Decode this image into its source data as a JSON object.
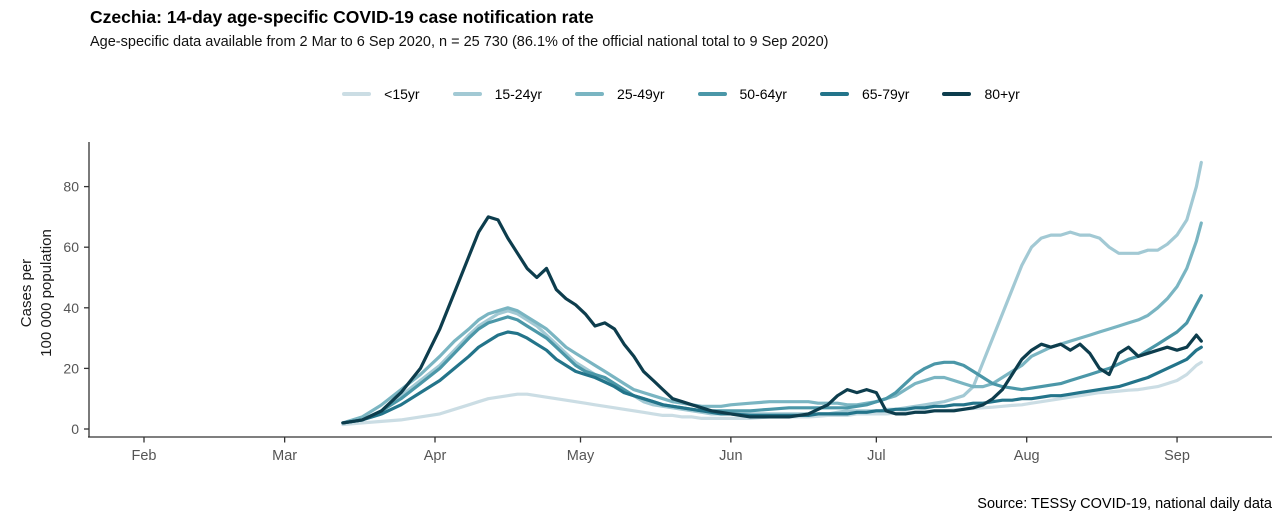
{
  "header": {
    "title": "Czechia: 14-day age-specific COVID-19 case notification rate",
    "subtitle": "Age-specific data available from 2 Mar to 6 Sep 2020, n = 25 730 (86.1% of the official national total to 9 Sep 2020)"
  },
  "footer": {
    "source": "Source: TESSy COVID-19, national daily data"
  },
  "colors": {
    "axis_line": "#333333",
    "tick_label": "#555555",
    "text": "#000000"
  },
  "chart_data": {
    "type": "line",
    "title": "Czechia: 14-day age-specific COVID-19 case notification rate",
    "subtitle": "Age-specific data available from 2 Mar to 6 Sep 2020, n = 25 730 (86.1% of the official national total to 9 Sep 2020)",
    "source": "Source: TESSy COVID-19, national daily data",
    "ylabel": "Cases per 100 000 population",
    "ylabel_lines": [
      "Cases per",
      "100 000 population"
    ],
    "xlabel": "",
    "grid": false,
    "legend_position": "top",
    "ylim": [
      0,
      95
    ],
    "yticks": [
      0,
      20,
      40,
      60,
      80
    ],
    "x_unit": "days since 1 Feb 2020 (data span 13 Mar – 6 Sep 2020)",
    "xticks": [
      {
        "label": "Feb",
        "day": 0
      },
      {
        "label": "Mar",
        "day": 29
      },
      {
        "label": "Apr",
        "day": 60
      },
      {
        "label": "May",
        "day": 90
      },
      {
        "label": "Jun",
        "day": 121
      },
      {
        "label": "Jul",
        "day": 151
      },
      {
        "label": "Aug",
        "day": 182
      },
      {
        "label": "Sep",
        "day": 213
      }
    ],
    "days": [
      41,
      45,
      49,
      53,
      57,
      61,
      64,
      67,
      69,
      71,
      73,
      75,
      77,
      79,
      81,
      83,
      85,
      87,
      89,
      91,
      93,
      95,
      97,
      99,
      101,
      103,
      105,
      107,
      109,
      111,
      113,
      115,
      117,
      119,
      121,
      125,
      129,
      133,
      135,
      137,
      139,
      141,
      143,
      145,
      147,
      149,
      151,
      152,
      153,
      155,
      157,
      159,
      161,
      163,
      165,
      167,
      169,
      171,
      173,
      175,
      177,
      179,
      181,
      183,
      185,
      187,
      189,
      191,
      193,
      195,
      197,
      199,
      201,
      203,
      205,
      207,
      209,
      211,
      213,
      215,
      217,
      218
    ],
    "series": [
      {
        "name": "<15yr",
        "color": "#cbdde4",
        "values": [
          1.5,
          2,
          2.5,
          3,
          4,
          5,
          6.5,
          8,
          9,
          10,
          10.5,
          11,
          11.5,
          11.5,
          11,
          10.5,
          10,
          9.5,
          9,
          8.5,
          8,
          7.5,
          7,
          6.5,
          6,
          5.5,
          5,
          4.5,
          4.5,
          4,
          4,
          3.5,
          3.5,
          3.5,
          3.5,
          3.5,
          4,
          4,
          4,
          4,
          4.2,
          4.5,
          4.5,
          4.5,
          5,
          5,
          5,
          5,
          5,
          5.2,
          5.5,
          5.7,
          6,
          6,
          6,
          6.3,
          6.5,
          6.8,
          7,
          7.2,
          7.5,
          7.8,
          8,
          8.5,
          9,
          9.5,
          10,
          10.5,
          11,
          11.5,
          12,
          12.2,
          12.5,
          12.8,
          13,
          13.5,
          14,
          15,
          16,
          18,
          21,
          22
        ]
      },
      {
        "name": "15-24yr",
        "color": "#a2c9d4",
        "values": [
          2,
          3,
          6,
          11,
          16,
          21,
          26,
          31,
          34,
          36,
          38,
          39,
          38,
          36,
          34,
          31,
          28,
          25,
          22,
          20,
          18,
          16,
          14,
          12,
          11,
          9,
          8,
          7.5,
          7,
          6.5,
          6,
          5.5,
          5,
          5,
          5,
          5,
          5,
          5,
          5,
          5,
          5,
          5,
          5.5,
          6,
          6,
          6,
          6,
          6,
          6.5,
          6.5,
          7,
          7.5,
          8,
          8.5,
          9,
          10,
          11,
          14,
          22,
          30,
          38,
          46,
          54,
          60,
          63,
          64,
          64,
          65,
          64,
          64,
          63,
          60,
          58,
          58,
          58,
          59,
          59,
          61,
          64,
          69,
          80,
          88
        ]
      },
      {
        "name": "25-49yr",
        "color": "#7ab5c2",
        "values": [
          2,
          4,
          8,
          13,
          18,
          24,
          29,
          33,
          36,
          38,
          39,
          40,
          39,
          37,
          35,
          33,
          30,
          27,
          25,
          23,
          21,
          19,
          17,
          15,
          13,
          12,
          11,
          10,
          9,
          8.5,
          8,
          7.5,
          7.5,
          7.5,
          8,
          8.5,
          9,
          9,
          9,
          9,
          8.5,
          8.5,
          8.5,
          8,
          8,
          8.5,
          9,
          9.5,
          10,
          11,
          13,
          15,
          16,
          17,
          17,
          16,
          15,
          14,
          14,
          15,
          17,
          19,
          21,
          24,
          25.5,
          27,
          28,
          29,
          30,
          31,
          32,
          33,
          34,
          35,
          36,
          37.5,
          40,
          43,
          47,
          53,
          62,
          68
        ]
      },
      {
        "name": "50-64yr",
        "color": "#4b97a8",
        "values": [
          2,
          3,
          6,
          10,
          15,
          20,
          25,
          30,
          33,
          35,
          36,
          37,
          36,
          34,
          32,
          30,
          27,
          24,
          21,
          19,
          18,
          17,
          15,
          13,
          11,
          10,
          9,
          8,
          7.5,
          7,
          6.5,
          6,
          6,
          6,
          6,
          6,
          6.5,
          7,
          7,
          7,
          7,
          7,
          7,
          7,
          7.5,
          8,
          9,
          9.5,
          10,
          12,
          15,
          18,
          20,
          21.5,
          22,
          22,
          21,
          19,
          17,
          15,
          14,
          13.5,
          13,
          13.5,
          14,
          14.5,
          15,
          16,
          17,
          18,
          19,
          20,
          21.5,
          23,
          24,
          26,
          28,
          30,
          32,
          35,
          41,
          44
        ]
      },
      {
        "name": "65-79yr",
        "color": "#23748a",
        "values": [
          2,
          3,
          5,
          8,
          12,
          16,
          20,
          24,
          27,
          29,
          31,
          32,
          31.5,
          30,
          28,
          26,
          23,
          21,
          19,
          18,
          17,
          15.5,
          14,
          12,
          11,
          10,
          9,
          8,
          7.5,
          7,
          6.5,
          6,
          5.5,
          5,
          5,
          4.5,
          4.5,
          4.5,
          4.5,
          4.5,
          5,
          5,
          5,
          5,
          5.5,
          5.5,
          6,
          6,
          6,
          6.5,
          6.5,
          7,
          7,
          7.5,
          7.5,
          8,
          8,
          8.5,
          8.5,
          9,
          9.5,
          9.5,
          10,
          10,
          10.5,
          11,
          11,
          11.5,
          12,
          12.5,
          13,
          13.5,
          14,
          15,
          16,
          17,
          18.5,
          20,
          21.5,
          23,
          26,
          27
        ]
      },
      {
        "name": "80+yr",
        "color": "#0d3d4d",
        "values": [
          2,
          3,
          6,
          12,
          20,
          33,
          45,
          57,
          65,
          70,
          69,
          63,
          58,
          53,
          50,
          53,
          46,
          43,
          41,
          38,
          34,
          35,
          33,
          28,
          24,
          19,
          16,
          13,
          10,
          9,
          8,
          7,
          6,
          5.5,
          5,
          4,
          4,
          4,
          4.5,
          5,
          6.5,
          8,
          11,
          13,
          12,
          13,
          12,
          9,
          6,
          5,
          5,
          5.5,
          5.5,
          6,
          6,
          6,
          6.5,
          7,
          8,
          10,
          13,
          18,
          23,
          26,
          28,
          27,
          28,
          26,
          28,
          25,
          20,
          18,
          25,
          27,
          24,
          25,
          26,
          27,
          26,
          27,
          31,
          29
        ]
      }
    ]
  }
}
